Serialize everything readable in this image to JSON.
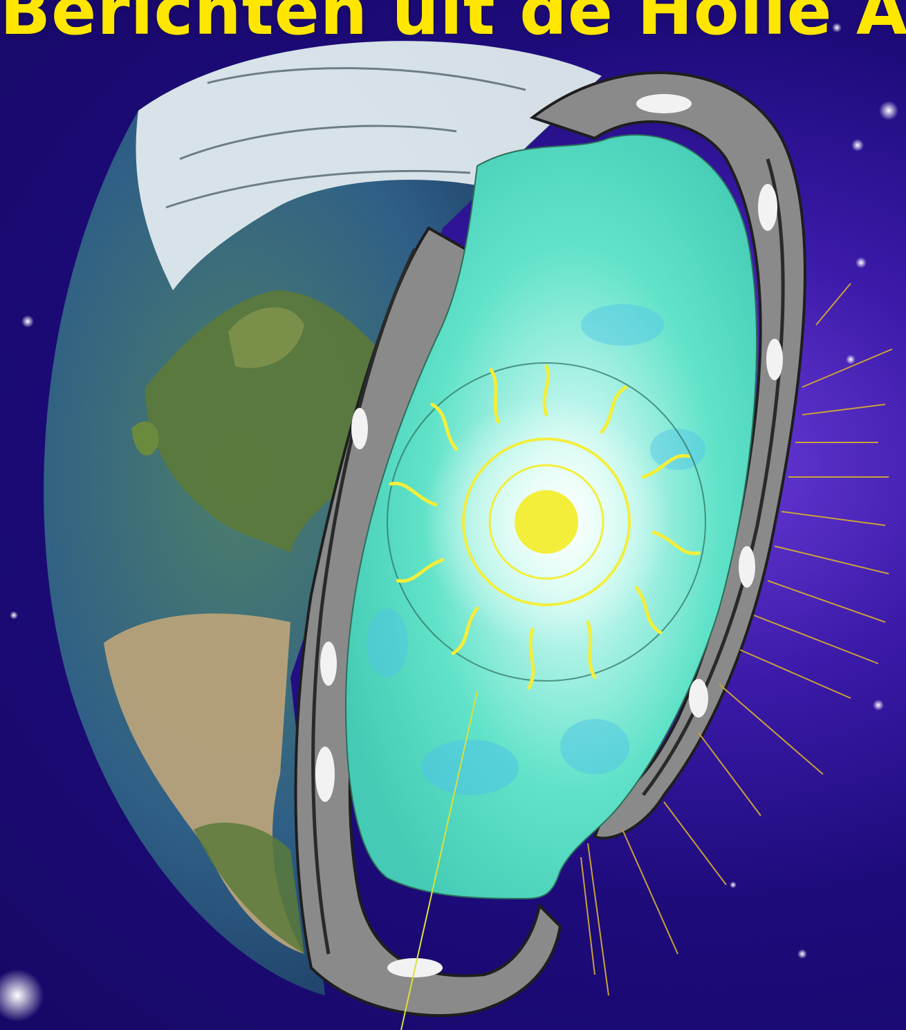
{
  "title": "Berichten uit de Holle Aarde",
  "colors": {
    "space_dark": "#160866",
    "space_glow": "#6a3bd8",
    "ocean": "#2d5f8a",
    "land_green": "#5c7a3a",
    "land_desert": "#b8a27a",
    "ice": "#e6eef2",
    "interior": "#5fe2c8",
    "interior_blue": "#4fc3e8",
    "crust": "#8a8a8a",
    "sun": "#f3ee3a",
    "title": "#ffe600"
  }
}
